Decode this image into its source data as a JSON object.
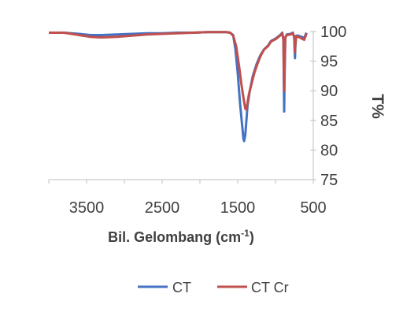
{
  "chart_data": {
    "type": "line",
    "title": "",
    "xlabel_main": "Bil. Gelombang (cm",
    "xlabel_sup": "-1",
    "xlabel_close": ")",
    "ylabel": "T%",
    "x_reversed": true,
    "xlim": [
      4000,
      500
    ],
    "ylim": [
      75,
      100
    ],
    "x_ticks": [
      "3500",
      "2500",
      "1500",
      "500"
    ],
    "x_tick_values": [
      3500,
      2500,
      1500,
      500
    ],
    "y_ticks": [
      "75",
      "80",
      "85",
      "90",
      "95",
      "100"
    ],
    "y_tick_values": [
      75,
      80,
      85,
      90,
      95,
      100
    ],
    "grid": false,
    "legend_position": "bottom",
    "series": [
      {
        "name": "CT",
        "color": "#4472C4",
        "points": [
          [
            4000,
            99.8
          ],
          [
            3800,
            99.8
          ],
          [
            3600,
            99.6
          ],
          [
            3450,
            99.4
          ],
          [
            3300,
            99.4
          ],
          [
            3100,
            99.5
          ],
          [
            2900,
            99.6
          ],
          [
            2700,
            99.7
          ],
          [
            2500,
            99.7
          ],
          [
            2300,
            99.8
          ],
          [
            2100,
            99.8
          ],
          [
            1900,
            99.9
          ],
          [
            1750,
            99.9
          ],
          [
            1650,
            99.9
          ],
          [
            1600,
            99.8
          ],
          [
            1560,
            99.4
          ],
          [
            1530,
            97
          ],
          [
            1500,
            93
          ],
          [
            1470,
            88
          ],
          [
            1440,
            84
          ],
          [
            1425,
            82
          ],
          [
            1415,
            81.5
          ],
          [
            1400,
            82.5
          ],
          [
            1385,
            85
          ],
          [
            1370,
            87.5
          ],
          [
            1340,
            90
          ],
          [
            1300,
            92.5
          ],
          [
            1250,
            94.5
          ],
          [
            1200,
            96
          ],
          [
            1150,
            97
          ],
          [
            1100,
            97.6
          ],
          [
            1060,
            98.4
          ],
          [
            1030,
            98.6
          ],
          [
            1000,
            98.8
          ],
          [
            960,
            99.2
          ],
          [
            930,
            99.5
          ],
          [
            910,
            99.8
          ],
          [
            895,
            98.5
          ],
          [
            890,
            92
          ],
          [
            885,
            86.5
          ],
          [
            880,
            92
          ],
          [
            870,
            99
          ],
          [
            850,
            99.5
          ],
          [
            800,
            99.6
          ],
          [
            770,
            99.8
          ],
          [
            752,
            99
          ],
          [
            747,
            97
          ],
          [
            742,
            95.5
          ],
          [
            737,
            97.5
          ],
          [
            725,
            99.3
          ],
          [
            700,
            99.3
          ],
          [
            680,
            99.2
          ],
          [
            650,
            99.1
          ],
          [
            620,
            98.9
          ],
          [
            600,
            99.5
          ],
          [
            590,
            99.8
          ]
        ]
      },
      {
        "name": "CT Cr",
        "color": "#C0504D",
        "points": [
          [
            4000,
            99.8
          ],
          [
            3800,
            99.8
          ],
          [
            3600,
            99.4
          ],
          [
            3450,
            99.1
          ],
          [
            3300,
            99.0
          ],
          [
            3100,
            99.1
          ],
          [
            2900,
            99.3
          ],
          [
            2700,
            99.5
          ],
          [
            2500,
            99.6
          ],
          [
            2300,
            99.7
          ],
          [
            2100,
            99.8
          ],
          [
            1900,
            99.9
          ],
          [
            1750,
            99.9
          ],
          [
            1650,
            99.9
          ],
          [
            1600,
            99.8
          ],
          [
            1560,
            99.3
          ],
          [
            1520,
            97.5
          ],
          [
            1480,
            94
          ],
          [
            1450,
            91
          ],
          [
            1420,
            88.5
          ],
          [
            1400,
            87
          ],
          [
            1385,
            86.8
          ],
          [
            1370,
            88
          ],
          [
            1350,
            89.5
          ],
          [
            1320,
            91
          ],
          [
            1280,
            93
          ],
          [
            1240,
            94.5
          ],
          [
            1200,
            95.8
          ],
          [
            1150,
            97
          ],
          [
            1100,
            97.5
          ],
          [
            1060,
            98.3
          ],
          [
            1030,
            98.5
          ],
          [
            1000,
            98.7
          ],
          [
            960,
            99.1
          ],
          [
            930,
            99.4
          ],
          [
            910,
            99.7
          ],
          [
            895,
            98.8
          ],
          [
            890,
            94
          ],
          [
            885,
            90
          ],
          [
            880,
            94
          ],
          [
            870,
            99
          ],
          [
            850,
            99.4
          ],
          [
            800,
            99.5
          ],
          [
            770,
            99.7
          ],
          [
            752,
            99
          ],
          [
            747,
            97.5
          ],
          [
            742,
            96.5
          ],
          [
            737,
            98
          ],
          [
            725,
            99.2
          ],
          [
            700,
            99.1
          ],
          [
            680,
            99.0
          ],
          [
            650,
            98.8
          ],
          [
            620,
            98.6
          ],
          [
            600,
            99.3
          ],
          [
            590,
            99.7
          ]
        ]
      }
    ]
  }
}
